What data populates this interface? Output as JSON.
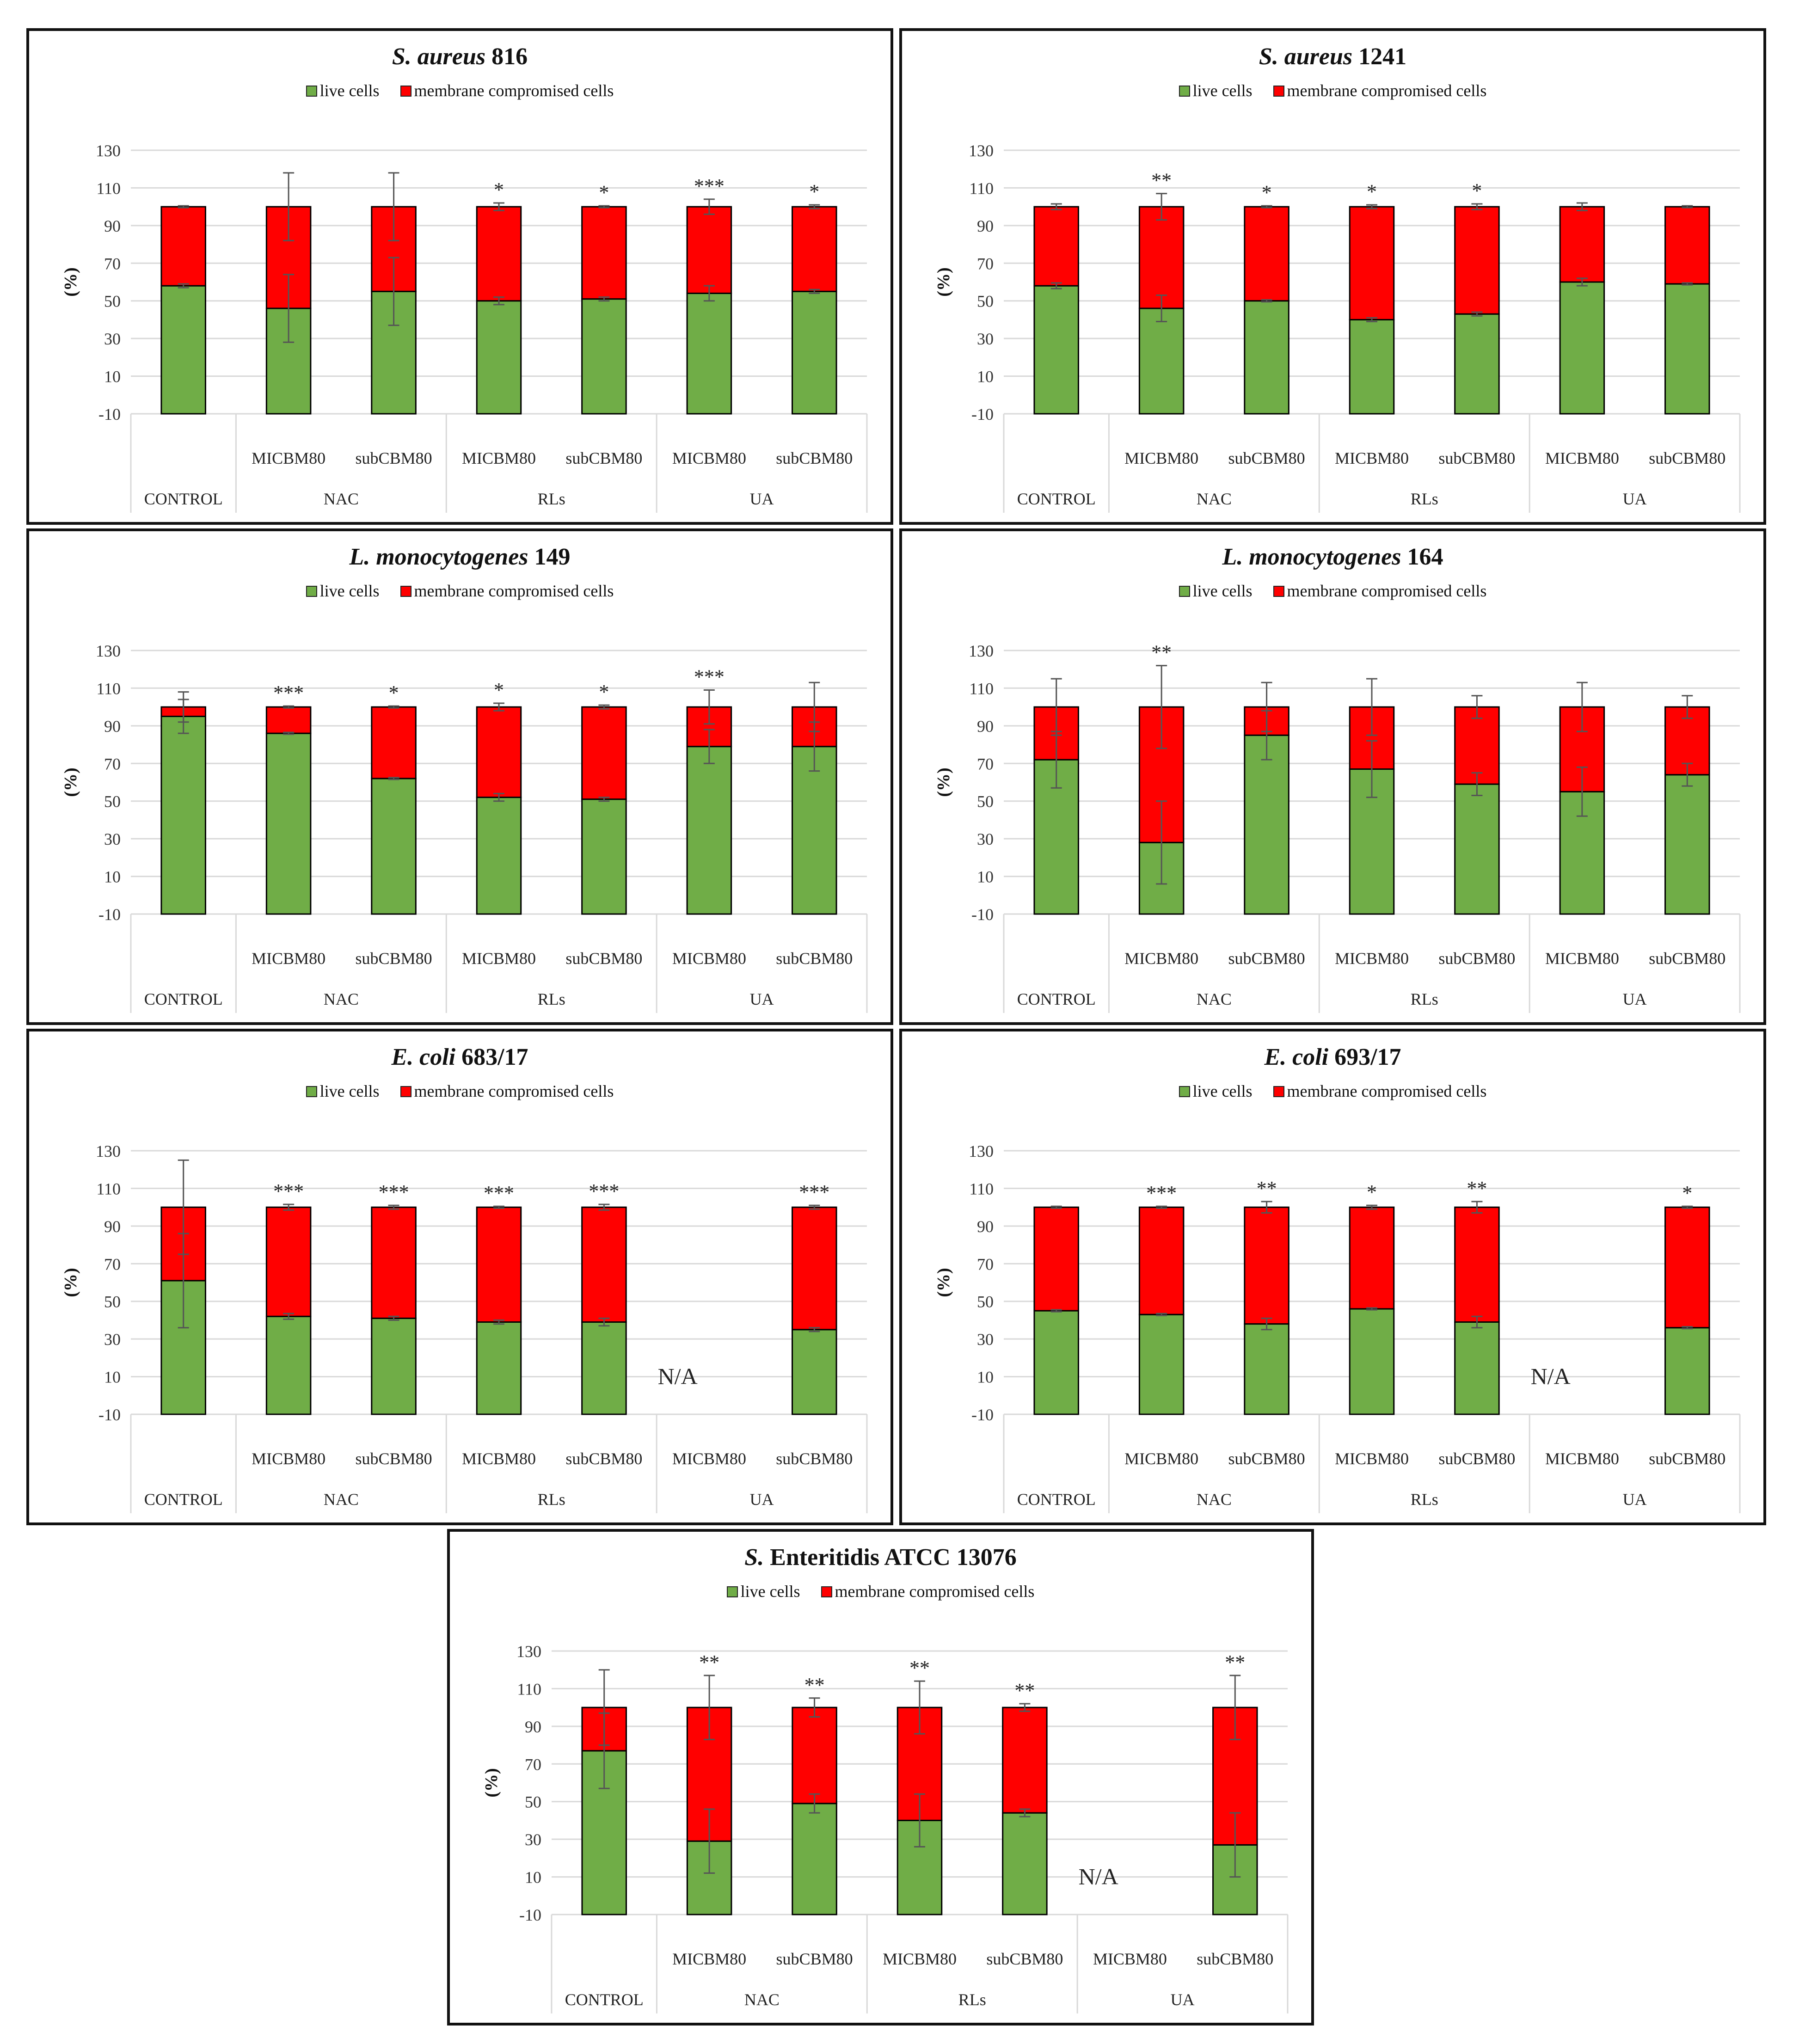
{
  "colors": {
    "live": "#70ad47",
    "compromised": "#ff0000",
    "grid": "#d9d9d9",
    "error_bar": "#555555",
    "bar_outline": "#000000"
  },
  "legend": {
    "live": "live cells",
    "compromised": "membrane compromised cells"
  },
  "chart_data": [
    {
      "type": "bar",
      "stacked": true,
      "title_italic": "S. aureus",
      "title_rest": " 816",
      "ylabel": "(%)",
      "ylim": [
        -10,
        130
      ],
      "yticks": [
        130,
        110,
        90,
        70,
        50,
        30,
        10,
        -10
      ],
      "gridlines": true,
      "legend_position": "top",
      "categories": [
        "",
        "MICBM80",
        "subCBM80",
        "MICBM80",
        "subCBM80",
        "MICBM80",
        "subCBM80"
      ],
      "groups": [
        {
          "label": "CONTROL",
          "span": 1
        },
        {
          "label": "NAC",
          "span": 2
        },
        {
          "label": "RLs",
          "span": 2
        },
        {
          "label": "UA",
          "span": 2
        }
      ],
      "series": [
        {
          "name": "live cells",
          "values": [
            58,
            46,
            55,
            50,
            51,
            54,
            55
          ],
          "errors": [
            1,
            18,
            18,
            2,
            1,
            4,
            1
          ]
        },
        {
          "name": "membrane compromised cells",
          "values": [
            42,
            54,
            45,
            50,
            49,
            46,
            45
          ],
          "errors": [
            0.5,
            18,
            18,
            2,
            0.5,
            4,
            1
          ]
        }
      ],
      "significance": [
        "",
        "",
        "",
        "*",
        "*",
        "***",
        "*"
      ],
      "na": ""
    },
    {
      "type": "bar",
      "stacked": true,
      "title_italic": "S. aureus",
      "title_rest": " 1241",
      "ylabel": "(%)",
      "ylim": [
        -10,
        130
      ],
      "yticks": [
        130,
        110,
        90,
        70,
        50,
        30,
        10,
        -10
      ],
      "gridlines": true,
      "legend_position": "top",
      "categories": [
        "",
        "MICBM80",
        "subCBM80",
        "MICBM80",
        "subCBM80",
        "MICBM80",
        "subCBM80"
      ],
      "groups": [
        {
          "label": "CONTROL",
          "span": 1
        },
        {
          "label": "NAC",
          "span": 2
        },
        {
          "label": "RLs",
          "span": 2
        },
        {
          "label": "UA",
          "span": 2
        }
      ],
      "series": [
        {
          "name": "live cells",
          "values": [
            58,
            46,
            50,
            40,
            43,
            60,
            59
          ],
          "errors": [
            1.5,
            7,
            0.5,
            1,
            1,
            2,
            0.5
          ]
        },
        {
          "name": "membrane compromised cells",
          "values": [
            42,
            54,
            50,
            60,
            57,
            40,
            41
          ],
          "errors": [
            1.5,
            7,
            0.5,
            1,
            1.5,
            2,
            0.5
          ]
        }
      ],
      "significance": [
        "",
        "**",
        "*",
        "*",
        "*",
        "",
        ""
      ],
      "na": ""
    },
    {
      "type": "bar",
      "stacked": true,
      "title_italic": "L. monocytogenes",
      "title_rest": " 149",
      "ylabel": "(%)",
      "ylim": [
        -10,
        130
      ],
      "yticks": [
        130,
        110,
        90,
        70,
        50,
        30,
        10,
        -10
      ],
      "gridlines": true,
      "legend_position": "top",
      "categories": [
        "",
        "MICBM80",
        "subCBM80",
        "MICBM80",
        "subCBM80",
        "MICBM80",
        "subCBM80"
      ],
      "groups": [
        {
          "label": "CONTROL",
          "span": 1
        },
        {
          "label": "NAC",
          "span": 2
        },
        {
          "label": "RLs",
          "span": 2
        },
        {
          "label": "UA",
          "span": 2
        }
      ],
      "series": [
        {
          "name": "live cells",
          "values": [
            95,
            86,
            62,
            52,
            51,
            79,
            79
          ],
          "errors": [
            9,
            0.5,
            0.5,
            2,
            1,
            9,
            13
          ]
        },
        {
          "name": "membrane compromised cells",
          "values": [
            5,
            14,
            38,
            48,
            49,
            21,
            21
          ],
          "errors": [
            8,
            0.5,
            0.5,
            2,
            1,
            9,
            13
          ]
        }
      ],
      "significance": [
        "",
        "***",
        "*",
        "*",
        "*",
        "***",
        ""
      ],
      "na": ""
    },
    {
      "type": "bar",
      "stacked": true,
      "title_italic": "L. monocytogenes",
      "title_rest": " 164",
      "ylabel": "(%)",
      "ylim": [
        -10,
        130
      ],
      "yticks": [
        130,
        110,
        90,
        70,
        50,
        30,
        10,
        -10
      ],
      "gridlines": true,
      "legend_position": "top",
      "categories": [
        "",
        "MICBM80",
        "subCBM80",
        "MICBM80",
        "subCBM80",
        "MICBM80",
        "subCBM80"
      ],
      "groups": [
        {
          "label": "CONTROL",
          "span": 1
        },
        {
          "label": "NAC",
          "span": 2
        },
        {
          "label": "RLs",
          "span": 2
        },
        {
          "label": "UA",
          "span": 2
        }
      ],
      "series": [
        {
          "name": "live cells",
          "values": [
            72,
            28,
            85,
            67,
            59,
            55,
            64
          ],
          "errors": [
            15,
            22,
            13,
            15,
            6,
            13,
            6
          ]
        },
        {
          "name": "membrane compromised cells",
          "values": [
            28,
            72,
            15,
            33,
            41,
            45,
            36
          ],
          "errors": [
            15,
            22,
            13,
            15,
            6,
            13,
            6
          ]
        }
      ],
      "significance": [
        "",
        "**",
        "",
        "",
        "",
        "",
        ""
      ],
      "na": ""
    },
    {
      "type": "bar",
      "stacked": true,
      "title_italic": "E. coli",
      "title_rest": " 683/17",
      "ylabel": "(%)",
      "ylim": [
        -10,
        130
      ],
      "yticks": [
        130,
        110,
        90,
        70,
        50,
        30,
        10,
        -10
      ],
      "gridlines": true,
      "legend_position": "top",
      "categories": [
        "",
        "MICBM80",
        "subCBM80",
        "MICBM80",
        "subCBM80",
        "MICBM80",
        "subCBM80"
      ],
      "groups": [
        {
          "label": "CONTROL",
          "span": 1
        },
        {
          "label": "NAC",
          "span": 2
        },
        {
          "label": "RLs",
          "span": 2
        },
        {
          "label": "UA",
          "span": 2
        }
      ],
      "series": [
        {
          "name": "live cells",
          "values": [
            61,
            42,
            41,
            39,
            39,
            null,
            35
          ],
          "errors": [
            25,
            1.5,
            1,
            1,
            2,
            null,
            1
          ]
        },
        {
          "name": "membrane compromised cells",
          "values": [
            39,
            58,
            59,
            61,
            61,
            null,
            65
          ],
          "errors": [
            25,
            1.5,
            1,
            0.5,
            1.5,
            null,
            1
          ]
        }
      ],
      "significance": [
        "",
        "***",
        "***",
        "***",
        "***",
        "",
        "***"
      ],
      "na": "N/A"
    },
    {
      "type": "bar",
      "stacked": true,
      "title_italic": "E. coli",
      "title_rest": " 693/17",
      "ylabel": "(%)",
      "ylim": [
        -10,
        130
      ],
      "yticks": [
        130,
        110,
        90,
        70,
        50,
        30,
        10,
        -10
      ],
      "gridlines": true,
      "legend_position": "top",
      "categories": [
        "",
        "MICBM80",
        "subCBM80",
        "MICBM80",
        "subCBM80",
        "MICBM80",
        "subCBM80"
      ],
      "groups": [
        {
          "label": "CONTROL",
          "span": 1
        },
        {
          "label": "NAC",
          "span": 2
        },
        {
          "label": "RLs",
          "span": 2
        },
        {
          "label": "UA",
          "span": 2
        }
      ],
      "series": [
        {
          "name": "live cells",
          "values": [
            45,
            43,
            38,
            46,
            39,
            null,
            36
          ],
          "errors": [
            0.5,
            0.5,
            3,
            0.5,
            3,
            null,
            0.5
          ]
        },
        {
          "name": "membrane compromised cells",
          "values": [
            55,
            57,
            62,
            54,
            61,
            null,
            64
          ],
          "errors": [
            0.5,
            0.5,
            3,
            1,
            3,
            null,
            0.5
          ]
        }
      ],
      "significance": [
        "",
        "***",
        "**",
        "*",
        "**",
        "",
        "*"
      ],
      "na": "N/A"
    },
    {
      "type": "bar",
      "stacked": true,
      "title_italic": "S.",
      "title_rest": " Enteritidis ATCC 13076",
      "ylabel": "(%)",
      "ylim": [
        -10,
        130
      ],
      "yticks": [
        130,
        110,
        90,
        70,
        50,
        30,
        10,
        -10
      ],
      "gridlines": true,
      "legend_position": "top",
      "categories": [
        "",
        "MICBM80",
        "subCBM80",
        "MICBM80",
        "subCBM80",
        "MICBM80",
        "subCBM80"
      ],
      "groups": [
        {
          "label": "CONTROL",
          "span": 1
        },
        {
          "label": "NAC",
          "span": 2
        },
        {
          "label": "RLs",
          "span": 2
        },
        {
          "label": "UA",
          "span": 2
        }
      ],
      "series": [
        {
          "name": "live cells",
          "values": [
            77,
            29,
            49,
            40,
            44,
            null,
            27
          ],
          "errors": [
            20,
            17,
            5,
            14,
            2,
            null,
            17
          ]
        },
        {
          "name": "membrane compromised cells",
          "values": [
            23,
            71,
            51,
            60,
            56,
            null,
            73
          ],
          "errors": [
            20,
            17,
            5,
            14,
            2,
            null,
            17
          ]
        }
      ],
      "significance": [
        "",
        "**",
        "**",
        "**",
        "**",
        "",
        "**"
      ],
      "na": "N/A"
    }
  ]
}
